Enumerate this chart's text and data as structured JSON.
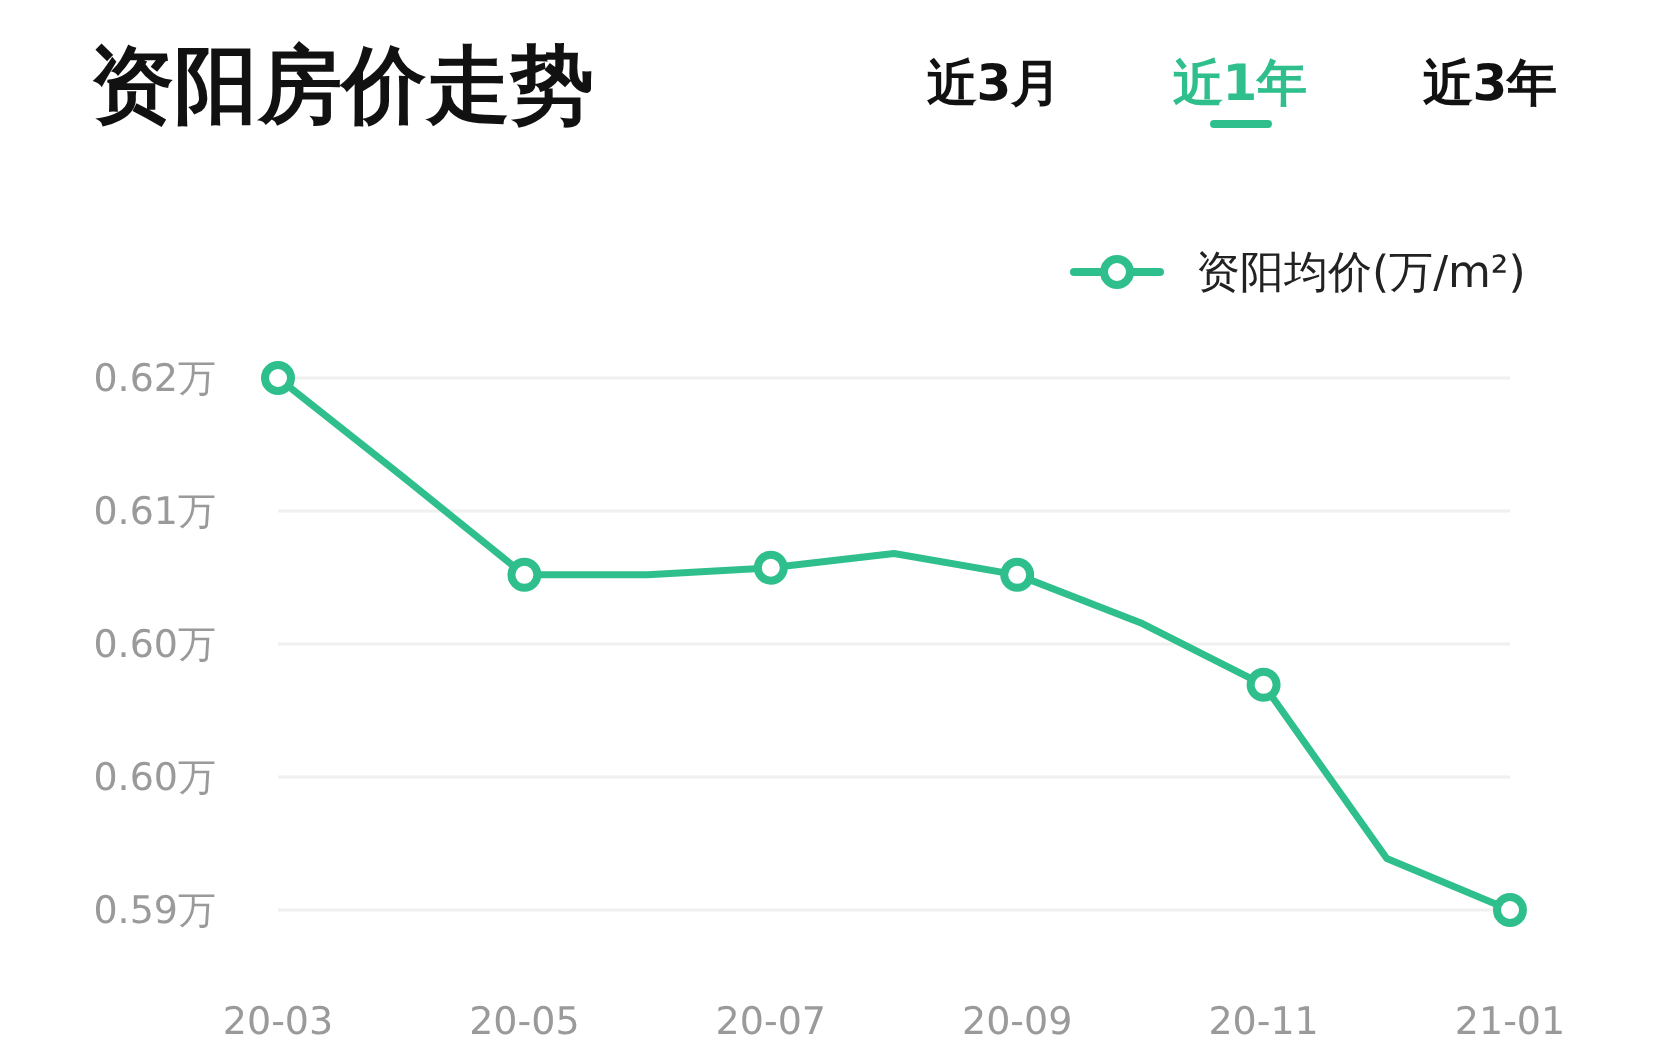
{
  "chart_data": {
    "type": "line",
    "title": "资阳房价走势",
    "annotations": [
      "近3月",
      "近1年",
      "近3年"
    ],
    "categories": [
      "20-03",
      null,
      "20-05",
      null,
      "20-07",
      null,
      "20-09",
      null,
      "20-11",
      null,
      "21-01"
    ],
    "series": [
      {
        "name": "资阳均价(万/m²)",
        "color": "#2fbf8c",
        "values": [
          0.62,
          0.6145,
          0.6089,
          0.6089,
          0.6093,
          0.6101,
          0.6089,
          0.6062,
          0.6027,
          0.5929,
          0.59
        ]
      }
    ],
    "ylim": [
      0.59,
      0.62
    ],
    "yticks": [
      {
        "value": 0.59,
        "label": "0.59万"
      },
      {
        "value": 0.5975,
        "label": "0.60万"
      },
      {
        "value": 0.605,
        "label": "0.60万"
      },
      {
        "value": 0.6125,
        "label": "0.61万"
      },
      {
        "value": 0.62,
        "label": "0.62万"
      }
    ],
    "grid": "y",
    "legend": "top right",
    "marker": "circle",
    "line_style": "solid"
  }
}
